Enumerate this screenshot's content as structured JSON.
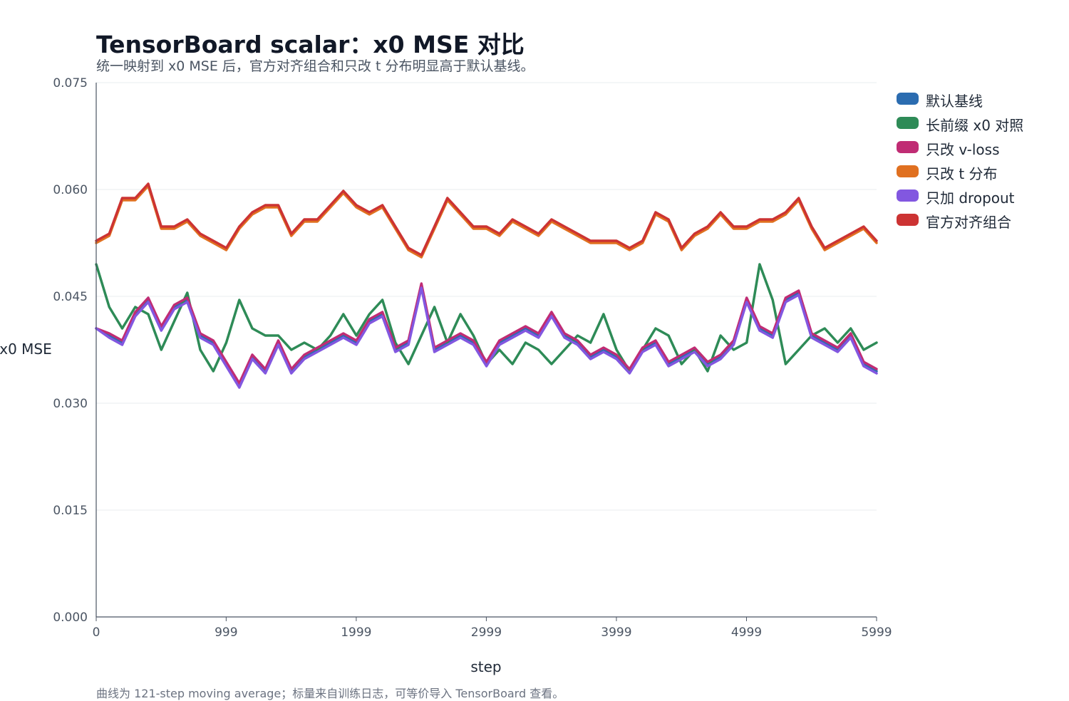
{
  "title": "TensorBoard scalar：x0 MSE 对比",
  "subtitle": "统一映射到 x0 MSE 后，官方对齐组合和只改 t 分布明显高于默认基线。",
  "footnote": "曲线为 121-step moving average；标量来自训练日志，可等价导入 TensorBoard 查看。",
  "chart_data": {
    "type": "line",
    "title": "TensorBoard scalar：x0 MSE 对比",
    "xlabel": "step",
    "ylabel": "x0 MSE",
    "xlim": [
      0,
      5999
    ],
    "ylim": [
      0,
      0.075
    ],
    "x_ticks": [
      0,
      999,
      1999,
      2999,
      3999,
      4999,
      5999
    ],
    "y_ticks": [
      "0.000",
      "0.015",
      "0.030",
      "0.045",
      "0.060",
      "0.075"
    ],
    "grid": "horizontal",
    "legend_position": "top-right",
    "x": [
      0,
      100,
      200,
      300,
      400,
      500,
      600,
      700,
      800,
      900,
      1000,
      1100,
      1200,
      1300,
      1400,
      1500,
      1600,
      1700,
      1800,
      1900,
      2000,
      2100,
      2200,
      2300,
      2400,
      2500,
      2600,
      2700,
      2800,
      2900,
      3000,
      3100,
      3200,
      3300,
      3400,
      3500,
      3600,
      3700,
      3800,
      3900,
      4000,
      4100,
      4200,
      4300,
      4400,
      4500,
      4600,
      4700,
      4800,
      4900,
      5000,
      5100,
      5200,
      5300,
      5400,
      5500,
      5600,
      5700,
      5800,
      5900,
      5999
    ],
    "series": [
      {
        "name": "默认基线",
        "color": "#2b6cb0",
        "values": [
          0.0405,
          0.0395,
          0.0385,
          0.0425,
          0.0445,
          0.0405,
          0.0435,
          0.0445,
          0.0395,
          0.0385,
          0.0355,
          0.0325,
          0.0365,
          0.0345,
          0.0385,
          0.0345,
          0.0365,
          0.0375,
          0.0385,
          0.0395,
          0.0385,
          0.0415,
          0.0425,
          0.0375,
          0.0385,
          0.0465,
          0.0375,
          0.0385,
          0.0395,
          0.0385,
          0.0355,
          0.0385,
          0.0395,
          0.0405,
          0.0395,
          0.0425,
          0.0395,
          0.0385,
          0.0365,
          0.0375,
          0.0365,
          0.0345,
          0.0375,
          0.0385,
          0.0355,
          0.0365,
          0.0375,
          0.0355,
          0.0365,
          0.0385,
          0.0445,
          0.0405,
          0.0395,
          0.0445,
          0.0455,
          0.0395,
          0.0385,
          0.0375,
          0.0395,
          0.0355,
          0.0345
        ]
      },
      {
        "name": "长前缀 x0 对照",
        "color": "#2e8b57",
        "values": [
          0.0495,
          0.0435,
          0.0405,
          0.0435,
          0.0425,
          0.0375,
          0.0415,
          0.0455,
          0.0375,
          0.0345,
          0.0385,
          0.0445,
          0.0405,
          0.0395,
          0.0395,
          0.0375,
          0.0385,
          0.0375,
          0.0395,
          0.0425,
          0.0395,
          0.0425,
          0.0445,
          0.0385,
          0.0355,
          0.0395,
          0.0435,
          0.0385,
          0.0425,
          0.0395,
          0.0355,
          0.0375,
          0.0355,
          0.0385,
          0.0375,
          0.0355,
          0.0375,
          0.0395,
          0.0385,
          0.0425,
          0.0375,
          0.0345,
          0.0375,
          0.0405,
          0.0395,
          0.0355,
          0.0375,
          0.0345,
          0.0395,
          0.0375,
          0.0385,
          0.0495,
          0.0445,
          0.0355,
          0.0375,
          0.0395,
          0.0405,
          0.0385,
          0.0405,
          0.0375,
          0.0385
        ]
      },
      {
        "name": "只改 v-loss",
        "color": "#c02c74",
        "values": [
          0.0405,
          0.0398,
          0.0388,
          0.0428,
          0.0448,
          0.0408,
          0.0438,
          0.0448,
          0.0398,
          0.0388,
          0.0358,
          0.0328,
          0.0368,
          0.0348,
          0.0388,
          0.0348,
          0.0368,
          0.0378,
          0.0388,
          0.0398,
          0.0388,
          0.0418,
          0.0428,
          0.0378,
          0.0388,
          0.0468,
          0.0378,
          0.0388,
          0.0398,
          0.0388,
          0.0358,
          0.0388,
          0.0398,
          0.0408,
          0.0398,
          0.0428,
          0.0398,
          0.0388,
          0.0368,
          0.0378,
          0.0368,
          0.0348,
          0.0378,
          0.0388,
          0.0358,
          0.0368,
          0.0378,
          0.0358,
          0.0368,
          0.0388,
          0.0448,
          0.0408,
          0.0398,
          0.0448,
          0.0458,
          0.0398,
          0.0388,
          0.0378,
          0.0398,
          0.0358,
          0.0348
        ]
      },
      {
        "name": "只改 t 分布",
        "color": "#e07020",
        "values": [
          0.0525,
          0.0535,
          0.0585,
          0.0585,
          0.0605,
          0.0545,
          0.0545,
          0.0555,
          0.0535,
          0.0525,
          0.0515,
          0.0545,
          0.0565,
          0.0575,
          0.0575,
          0.0535,
          0.0555,
          0.0555,
          0.0575,
          0.0595,
          0.0575,
          0.0565,
          0.0575,
          0.0545,
          0.0515,
          0.0505,
          0.0545,
          0.0585,
          0.0565,
          0.0545,
          0.0545,
          0.0535,
          0.0555,
          0.0545,
          0.0535,
          0.0555,
          0.0545,
          0.0535,
          0.0525,
          0.0525,
          0.0525,
          0.0515,
          0.0525,
          0.0565,
          0.0555,
          0.0515,
          0.0535,
          0.0545,
          0.0565,
          0.0545,
          0.0545,
          0.0555,
          0.0555,
          0.0565,
          0.0585,
          0.0545,
          0.0515,
          0.0525,
          0.0535,
          0.0545,
          0.0525
        ]
      },
      {
        "name": "只加 dropout",
        "color": "#8257e0",
        "values": [
          0.0405,
          0.0392,
          0.0382,
          0.0422,
          0.0442,
          0.0402,
          0.0432,
          0.0442,
          0.0392,
          0.0382,
          0.0352,
          0.0322,
          0.0362,
          0.0342,
          0.0382,
          0.0342,
          0.0362,
          0.0372,
          0.0382,
          0.0392,
          0.0382,
          0.0412,
          0.0422,
          0.0372,
          0.0382,
          0.0462,
          0.0372,
          0.0382,
          0.0392,
          0.0382,
          0.0352,
          0.0382,
          0.0392,
          0.0402,
          0.0392,
          0.0422,
          0.0392,
          0.0382,
          0.0362,
          0.0372,
          0.0362,
          0.0342,
          0.0372,
          0.0382,
          0.0352,
          0.0362,
          0.0372,
          0.0352,
          0.0362,
          0.0382,
          0.0442,
          0.0402,
          0.0392,
          0.0442,
          0.0452,
          0.0392,
          0.0382,
          0.0372,
          0.0392,
          0.0352,
          0.0342
        ]
      },
      {
        "name": "官方对齐组合",
        "color": "#cc3333",
        "values": [
          0.0528,
          0.0538,
          0.0588,
          0.0588,
          0.0608,
          0.0548,
          0.0548,
          0.0558,
          0.0538,
          0.0528,
          0.0518,
          0.0548,
          0.0568,
          0.0578,
          0.0578,
          0.0538,
          0.0558,
          0.0558,
          0.0578,
          0.0598,
          0.0578,
          0.0568,
          0.0578,
          0.0548,
          0.0518,
          0.0508,
          0.0548,
          0.0588,
          0.0568,
          0.0548,
          0.0548,
          0.0538,
          0.0558,
          0.0548,
          0.0538,
          0.0558,
          0.0548,
          0.0538,
          0.0528,
          0.0528,
          0.0528,
          0.0518,
          0.0528,
          0.0568,
          0.0558,
          0.0518,
          0.0538,
          0.0548,
          0.0568,
          0.0548,
          0.0548,
          0.0558,
          0.0558,
          0.0568,
          0.0588,
          0.0548,
          0.0518,
          0.0528,
          0.0538,
          0.0548,
          0.0528
        ]
      }
    ]
  }
}
